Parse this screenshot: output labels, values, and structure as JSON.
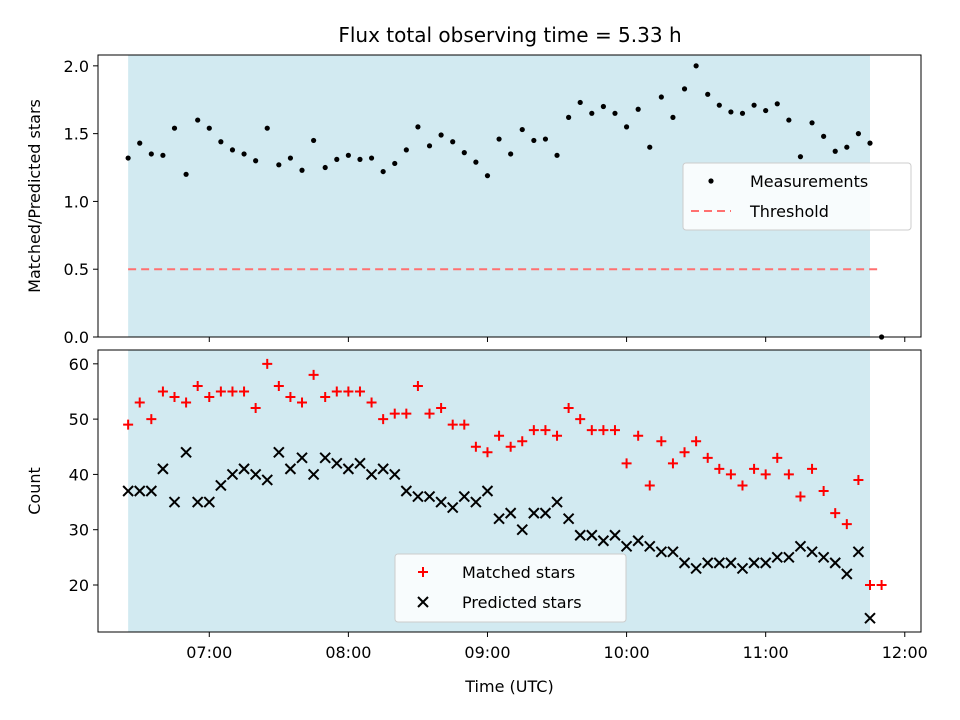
{
  "chart_data": [
    {
      "type": "scatter",
      "title": "Flux total observing time = 5.33 h",
      "xlabel": "",
      "ylabel": "Matched/Predicted stars",
      "ylim": [
        0,
        2.08
      ],
      "xlim": [
        "06:12",
        "12:07"
      ],
      "yticks": [
        0.0,
        0.5,
        1.0,
        1.5,
        2.0
      ],
      "ytick_labels": [
        "0.0",
        "0.5",
        "1.0",
        "1.5",
        "2.0"
      ],
      "xticks": [
        "07:00",
        "08:00",
        "09:00",
        "10:00",
        "11:00",
        "12:00"
      ],
      "xtick_labels_visible": false,
      "observing_window": [
        "06:25",
        "11:45"
      ],
      "observing_window_color": "#add8e6",
      "legend": {
        "position": "right",
        "entries": [
          "Measurements",
          "Threshold"
        ]
      },
      "series": [
        {
          "name": "Measurements",
          "marker": "dot",
          "color": "#000000",
          "x": [
            "06:25",
            "06:30",
            "06:35",
            "06:40",
            "06:45",
            "06:50",
            "06:55",
            "07:00",
            "07:05",
            "07:10",
            "07:15",
            "07:20",
            "07:25",
            "07:30",
            "07:35",
            "07:40",
            "07:45",
            "07:50",
            "07:55",
            "08:00",
            "08:05",
            "08:10",
            "08:15",
            "08:20",
            "08:25",
            "08:30",
            "08:35",
            "08:40",
            "08:45",
            "08:50",
            "08:55",
            "09:00",
            "09:05",
            "09:10",
            "09:15",
            "09:20",
            "09:25",
            "09:30",
            "09:35",
            "09:40",
            "09:45",
            "09:50",
            "09:55",
            "10:00",
            "10:05",
            "10:10",
            "10:15",
            "10:20",
            "10:25",
            "10:30",
            "10:35",
            "10:40",
            "10:45",
            "10:50",
            "10:55",
            "11:00",
            "11:05",
            "11:10",
            "11:15",
            "11:20",
            "11:25",
            "11:30",
            "11:35",
            "11:40",
            "11:45",
            "11:50"
          ],
          "values": [
            1.32,
            1.43,
            1.35,
            1.34,
            1.54,
            1.2,
            1.6,
            1.54,
            1.44,
            1.38,
            1.35,
            1.3,
            1.54,
            1.27,
            1.32,
            1.23,
            1.45,
            1.25,
            1.31,
            1.34,
            1.31,
            1.32,
            1.22,
            1.28,
            1.38,
            1.55,
            1.41,
            1.49,
            1.44,
            1.36,
            1.29,
            1.19,
            1.46,
            1.35,
            1.53,
            1.45,
            1.46,
            1.34,
            1.62,
            1.73,
            1.65,
            1.7,
            1.65,
            1.55,
            1.68,
            1.4,
            1.77,
            1.62,
            1.83,
            2.0,
            1.79,
            1.71,
            1.66,
            1.65,
            1.71,
            1.67,
            1.72,
            1.6,
            1.33,
            1.58,
            1.48,
            1.37,
            1.4,
            1.5,
            1.43,
            0.0
          ]
        },
        {
          "name": "Threshold",
          "style": "dashed",
          "color": "#ff7070",
          "x": [
            "06:25",
            "11:50"
          ],
          "values": [
            0.5,
            0.5
          ]
        }
      ]
    },
    {
      "type": "scatter",
      "title": "",
      "xlabel": "Time (UTC)",
      "ylabel": "Count",
      "ylim": [
        11.5,
        62.5
      ],
      "xlim": [
        "06:12",
        "12:07"
      ],
      "yticks": [
        20,
        30,
        40,
        50,
        60
      ],
      "ytick_labels": [
        "20",
        "30",
        "40",
        "50",
        "60"
      ],
      "xticks": [
        "07:00",
        "08:00",
        "09:00",
        "10:00",
        "11:00",
        "12:00"
      ],
      "xtick_labels": [
        "07:00",
        "08:00",
        "09:00",
        "10:00",
        "11:00",
        "12:00"
      ],
      "observing_window": [
        "06:25",
        "11:45"
      ],
      "observing_window_color": "#add8e6",
      "legend": {
        "position": "bottom-center",
        "entries": [
          "Matched stars",
          "Predicted stars"
        ]
      },
      "series": [
        {
          "name": "Matched stars",
          "marker": "plus",
          "color": "#ff0000",
          "x": [
            "06:25",
            "06:30",
            "06:35",
            "06:40",
            "06:45",
            "06:50",
            "06:55",
            "07:00",
            "07:05",
            "07:10",
            "07:15",
            "07:20",
            "07:25",
            "07:30",
            "07:35",
            "07:40",
            "07:45",
            "07:50",
            "07:55",
            "08:00",
            "08:05",
            "08:10",
            "08:15",
            "08:20",
            "08:25",
            "08:30",
            "08:35",
            "08:40",
            "08:45",
            "08:50",
            "08:55",
            "09:00",
            "09:05",
            "09:10",
            "09:15",
            "09:20",
            "09:25",
            "09:30",
            "09:35",
            "09:40",
            "09:45",
            "09:50",
            "09:55",
            "10:00",
            "10:05",
            "10:10",
            "10:15",
            "10:20",
            "10:25",
            "10:30",
            "10:35",
            "10:40",
            "10:45",
            "10:50",
            "10:55",
            "11:00",
            "11:05",
            "11:10",
            "11:15",
            "11:20",
            "11:25",
            "11:30",
            "11:35",
            "11:40",
            "11:45",
            "11:50"
          ],
          "values": [
            49,
            53,
            50,
            55,
            54,
            53,
            56,
            54,
            55,
            55,
            55,
            52,
            60,
            56,
            54,
            53,
            58,
            54,
            55,
            55,
            55,
            53,
            50,
            51,
            51,
            56,
            51,
            52,
            49,
            49,
            45,
            44,
            47,
            45,
            46,
            48,
            48,
            47,
            52,
            50,
            48,
            48,
            48,
            42,
            47,
            38,
            46,
            42,
            44,
            46,
            43,
            41,
            40,
            38,
            41,
            40,
            43,
            40,
            36,
            41,
            37,
            33,
            31,
            39,
            20,
            20
          ]
        },
        {
          "name": "Predicted stars",
          "marker": "x",
          "color": "#000000",
          "x": [
            "06:25",
            "06:30",
            "06:35",
            "06:40",
            "06:45",
            "06:50",
            "06:55",
            "07:00",
            "07:05",
            "07:10",
            "07:15",
            "07:20",
            "07:25",
            "07:30",
            "07:35",
            "07:40",
            "07:45",
            "07:50",
            "07:55",
            "08:00",
            "08:05",
            "08:10",
            "08:15",
            "08:20",
            "08:25",
            "08:30",
            "08:35",
            "08:40",
            "08:45",
            "08:50",
            "08:55",
            "09:00",
            "09:05",
            "09:10",
            "09:15",
            "09:20",
            "09:25",
            "09:30",
            "09:35",
            "09:40",
            "09:45",
            "09:50",
            "09:55",
            "10:00",
            "10:05",
            "10:10",
            "10:15",
            "10:20",
            "10:25",
            "10:30",
            "10:35",
            "10:40",
            "10:45",
            "10:50",
            "10:55",
            "11:00",
            "11:05",
            "11:10",
            "11:15",
            "11:20",
            "11:25",
            "11:30",
            "11:35",
            "11:40",
            "11:45"
          ],
          "values": [
            37,
            37,
            37,
            41,
            35,
            44,
            35,
            35,
            38,
            40,
            41,
            40,
            39,
            44,
            41,
            43,
            40,
            43,
            42,
            41,
            42,
            40,
            41,
            40,
            37,
            36,
            36,
            35,
            34,
            36,
            35,
            37,
            32,
            33,
            30,
            33,
            33,
            35,
            32,
            29,
            29,
            28,
            29,
            27,
            28,
            27,
            26,
            26,
            24,
            23,
            24,
            24,
            24,
            23,
            24,
            24,
            25,
            25,
            27,
            26,
            25,
            24,
            22,
            26,
            14
          ]
        }
      ]
    }
  ]
}
